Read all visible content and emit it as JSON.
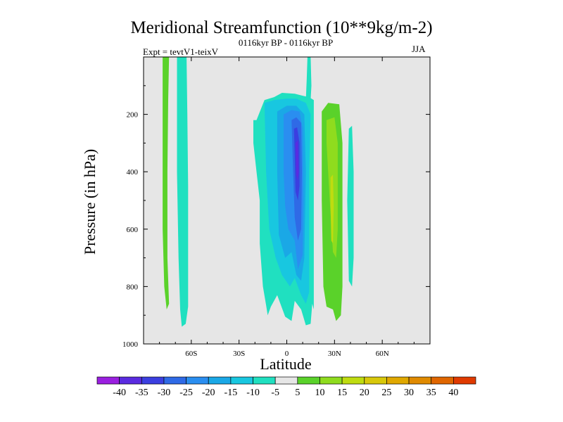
{
  "chart_data": {
    "type": "filled-contour",
    "title": "Meridional Streamfunction (10**9kg/m-2)",
    "subtitle": "0116kyr BP - 0116kyr BP",
    "experiment": "Expt = tevtV1-teixV",
    "season": "JJA",
    "xlabel": "Latitude",
    "ylabel": "Pressure (in hPa)",
    "xlim": [
      -90,
      90
    ],
    "ylim": [
      1000,
      0
    ],
    "x_ticks": [
      -60,
      -30,
      0,
      30,
      60
    ],
    "x_tick_labels": [
      "60S",
      "30S",
      "0",
      "30N",
      "60N"
    ],
    "y_ticks": [
      200,
      400,
      600,
      800,
      1000
    ],
    "y_tick_labels": [
      "200",
      "400",
      "600",
      "800",
      "1000"
    ],
    "background_color": "#e6e6e6",
    "contour_levels": [
      -40,
      -35,
      -30,
      -25,
      -20,
      -15,
      -10,
      -5,
      5,
      10,
      15,
      20,
      25,
      30,
      35,
      40
    ],
    "colorbar_labels": [
      "-40",
      "-35",
      "-30",
      "-25",
      "-20",
      "-15",
      "-10",
      "-5",
      "5",
      "10",
      "15",
      "20",
      "25",
      "30",
      "35",
      "40"
    ],
    "colorbar_colors": [
      "#9a1fe0",
      "#5a2be0",
      "#3b3fe0",
      "#2f6ae6",
      "#2a8ef0",
      "#1aa8e6",
      "#18c7e0",
      "#20e0c0",
      "#e6e6e6",
      "#5ad22a",
      "#8fdc1e",
      "#bfdc10",
      "#d8c80a",
      "#e0a800",
      "#e08a00",
      "#e06600",
      "#e03a00"
    ],
    "regions": [
      {
        "name": "green-strip-high-lat-south",
        "level": 5,
        "color": "#5ad22a",
        "points": [
          [
            -78,
            0
          ],
          [
            -74,
            0
          ],
          [
            -74.5,
            150
          ],
          [
            -75,
            400
          ],
          [
            -75,
            700
          ],
          [
            -74,
            860
          ],
          [
            -75.5,
            880
          ],
          [
            -77,
            800
          ],
          [
            -78,
            600
          ],
          [
            -78,
            300
          ]
        ]
      },
      {
        "name": "cyan-strip-60s",
        "level": -5,
        "color": "#20e0c0",
        "points": [
          [
            -69,
            0
          ],
          [
            -63,
            0
          ],
          [
            -62.5,
            200
          ],
          [
            -62,
            450
          ],
          [
            -62,
            700
          ],
          [
            -62,
            870
          ],
          [
            -63.5,
            930
          ],
          [
            -66,
            940
          ],
          [
            -67,
            880
          ],
          [
            -68,
            700
          ],
          [
            -69,
            400
          ]
        ]
      },
      {
        "name": "cyan-cell-tropics",
        "level": -5,
        "color": "#20e0c0",
        "points": [
          [
            -21,
            220
          ],
          [
            -19,
            220
          ],
          [
            -14,
            150
          ],
          [
            -8,
            140
          ],
          [
            -3,
            125
          ],
          [
            5,
            128
          ],
          [
            10,
            135
          ],
          [
            14,
            140
          ],
          [
            17,
            150
          ],
          [
            17,
            400
          ],
          [
            17,
            800
          ],
          [
            17,
            880
          ],
          [
            16,
            860
          ],
          [
            15,
            930
          ],
          [
            12,
            935
          ],
          [
            9,
            880
          ],
          [
            5,
            850
          ],
          [
            3,
            920
          ],
          [
            -1,
            905
          ],
          [
            -6,
            830
          ],
          [
            -10,
            870
          ],
          [
            -12,
            900
          ],
          [
            -13,
            865
          ],
          [
            -15,
            800
          ],
          [
            -17,
            650
          ],
          [
            -17,
            500
          ],
          [
            -19,
            400
          ],
          [
            -21,
            300
          ]
        ]
      },
      {
        "name": "cyan-column-upper",
        "level": -5,
        "color": "#20e0c0",
        "points": [
          [
            13,
            0
          ],
          [
            15,
            0
          ],
          [
            15.5,
            100
          ],
          [
            15,
            150
          ],
          [
            12,
            150
          ],
          [
            12.5,
            80
          ]
        ]
      },
      {
        "name": "blue-10",
        "level": -10,
        "color": "#18c7e0",
        "points": [
          [
            -14,
            160
          ],
          [
            -8,
            150
          ],
          [
            0,
            145
          ],
          [
            6,
            145
          ],
          [
            12,
            160
          ],
          [
            15,
            200
          ],
          [
            14,
            400
          ],
          [
            14,
            700
          ],
          [
            14,
            820
          ],
          [
            12,
            860
          ],
          [
            9,
            830
          ],
          [
            5,
            770
          ],
          [
            2,
            800
          ],
          [
            -3,
            760
          ],
          [
            -7,
            700
          ],
          [
            -11,
            600
          ],
          [
            -13,
            400
          ]
        ]
      },
      {
        "name": "blue-15",
        "level": -15,
        "color": "#1aa8e6",
        "points": [
          [
            -6,
            190
          ],
          [
            0,
            170
          ],
          [
            6,
            170
          ],
          [
            11,
            200
          ],
          [
            12,
            400
          ],
          [
            11,
            700
          ],
          [
            9,
            780
          ],
          [
            6,
            760
          ],
          [
            3,
            680
          ],
          [
            -1,
            700
          ],
          [
            -5,
            620
          ],
          [
            -6,
            400
          ]
        ]
      },
      {
        "name": "blue-20",
        "level": -20,
        "color": "#2a8ef0",
        "points": [
          [
            -2,
            200
          ],
          [
            3,
            185
          ],
          [
            8,
            190
          ],
          [
            10,
            250
          ],
          [
            10.5,
            500
          ],
          [
            10,
            690
          ],
          [
            7,
            740
          ],
          [
            5,
            640
          ],
          [
            1,
            600
          ],
          [
            -1,
            520
          ],
          [
            -2,
            400
          ]
        ]
      },
      {
        "name": "blue-25",
        "level": -25,
        "color": "#2f6ae6",
        "points": [
          [
            3,
            220
          ],
          [
            6,
            210
          ],
          [
            9,
            230
          ],
          [
            9.5,
            400
          ],
          [
            9,
            600
          ],
          [
            7,
            640
          ],
          [
            5,
            560
          ],
          [
            4,
            400
          ]
        ]
      },
      {
        "name": "blue-30",
        "level": -30,
        "color": "#3b3fe0",
        "points": [
          [
            4.5,
            250
          ],
          [
            6.5,
            245
          ],
          [
            8,
            300
          ],
          [
            8,
            450
          ],
          [
            7,
            500
          ],
          [
            5.5,
            470
          ],
          [
            5,
            350
          ]
        ]
      },
      {
        "name": "blue-35",
        "level": -35,
        "color": "#5a2be0",
        "points": [
          [
            5.5,
            300
          ],
          [
            7,
            290
          ],
          [
            7.5,
            400
          ],
          [
            6.8,
            430
          ],
          [
            6,
            410
          ]
        ]
      },
      {
        "name": "green-cell-ntropics",
        "level": 5,
        "color": "#5ad22a",
        "points": [
          [
            22,
            190
          ],
          [
            26,
            160
          ],
          [
            33,
            165
          ],
          [
            35,
            300
          ],
          [
            35,
            600
          ],
          [
            35,
            800
          ],
          [
            34,
            900
          ],
          [
            31,
            920
          ],
          [
            29,
            880
          ],
          [
            25,
            870
          ],
          [
            23,
            800
          ],
          [
            22,
            500
          ]
        ]
      },
      {
        "name": "green-cell-10",
        "level": 10,
        "color": "#8fdc1e",
        "points": [
          [
            25,
            220
          ],
          [
            30,
            210
          ],
          [
            32,
            300
          ],
          [
            32,
            600
          ],
          [
            31,
            700
          ],
          [
            29,
            680
          ],
          [
            27,
            500
          ],
          [
            25,
            300
          ]
        ]
      },
      {
        "name": "green-cell-15",
        "level": 15,
        "color": "#bfdc10",
        "points": [
          [
            27.5,
            420
          ],
          [
            29,
            410
          ],
          [
            29.5,
            520
          ],
          [
            29,
            650
          ],
          [
            28,
            640
          ],
          [
            27.5,
            520
          ]
        ]
      },
      {
        "name": "cyan-column-40n",
        "level": -5,
        "color": "#20e0c0",
        "points": [
          [
            39,
            250
          ],
          [
            41,
            240
          ],
          [
            42,
            400
          ],
          [
            42,
            700
          ],
          [
            41,
            800
          ],
          [
            39,
            780
          ],
          [
            38,
            500
          ]
        ]
      }
    ]
  }
}
